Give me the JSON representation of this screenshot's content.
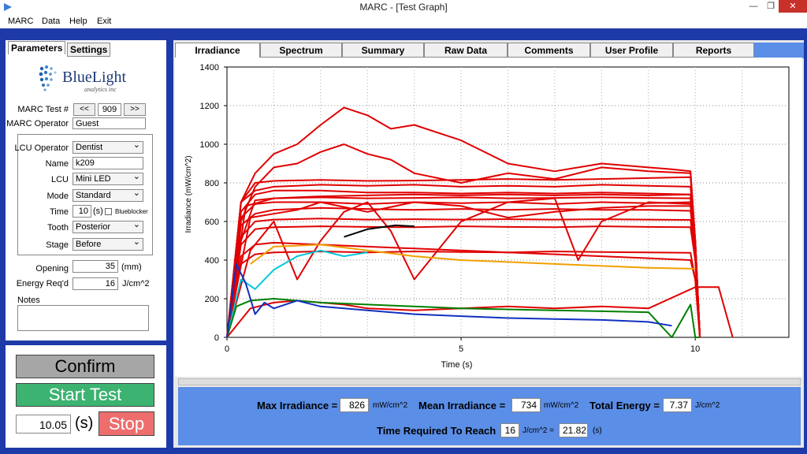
{
  "window": {
    "title": "MARC - [Test Graph]",
    "minimize": "—",
    "restore": "❐",
    "close": "✕"
  },
  "menu": [
    "MARC",
    "Data",
    "Help",
    "Exit"
  ],
  "left_tabs": {
    "parameters": "Parameters",
    "settings": "Settings"
  },
  "logo": {
    "name": "BlueLight",
    "sub": "analytics inc"
  },
  "params": {
    "test_label": "MARC Test #",
    "prev": "<<",
    "test_no": "909",
    "next": ">>",
    "operator_label": "MARC Operator",
    "operator": "Guest",
    "lcu_operator_label": "LCU Operator",
    "lcu_operator": "Dentist",
    "name_label": "Name",
    "name": "k209",
    "lcu_label": "LCU",
    "lcu": "Mini LED",
    "mode_label": "Mode",
    "mode": "Standard",
    "time_label": "Time",
    "time": "10",
    "time_unit": "(s)",
    "blueblocker": "Blueblocker",
    "tooth_label": "Tooth",
    "tooth": "Posterior",
    "stage_label": "Stage",
    "stage": "Before",
    "opening_label": "Opening",
    "opening": "35",
    "opening_unit": "(mm)",
    "energy_label": "Energy Req'd",
    "energy": "16",
    "energy_unit": "J/cm^2",
    "notes_label": "Notes"
  },
  "controls": {
    "confirm": "Confirm",
    "start": "Start Test",
    "elapsed": "10.05",
    "elapsed_unit": "(s)",
    "stop": "Stop"
  },
  "tabs": [
    "Irradiance",
    "Spectrum",
    "Summary",
    "Raw Data",
    "Comments",
    "User Profile",
    "Reports"
  ],
  "stats": {
    "max_label": "Max Irradiance =",
    "max": "826",
    "max_unit": "mW/cm^2",
    "mean_label": "Mean Irradiance =",
    "mean": "734",
    "mean_unit": "mW/cm^2",
    "energy_label": "Total Energy =",
    "energy": "7.37",
    "energy_unit": "J/cm^2",
    "reach_label": "Time Required To Reach",
    "reach_val": "16",
    "reach_unit": "J/cm^2 =",
    "reach_time": "21.82",
    "reach_time_unit": "(s)"
  },
  "colors": {
    "frame": "#1e3aa8",
    "stats_bg": "#5b8ee6",
    "confirm": "#a6a6a6",
    "start": "#3cb371",
    "stop": "#ee6e6e",
    "curve": "#e00000"
  },
  "chart_data": {
    "type": "line",
    "xlabel": "Time (s)",
    "ylabel": "Irradiance (mW/cm^2)",
    "xlim": [
      0,
      12
    ],
    "ylim": [
      0,
      1400
    ],
    "x_ticks": [
      "0",
      "5",
      "10"
    ],
    "y_ticks": [
      "0",
      "200",
      "400",
      "600",
      "800",
      "1000",
      "1200",
      "1400"
    ],
    "grid": true,
    "series": [
      {
        "color": "#e00000",
        "x": [
          0,
          0.3,
          0.6,
          1,
          2,
          3,
          4,
          5,
          6,
          7,
          8,
          9,
          9.9,
          10,
          10.1
        ],
        "y": [
          0,
          620,
          690,
          700,
          700,
          690,
          700,
          695,
          700,
          690,
          700,
          695,
          700,
          500,
          0
        ]
      },
      {
        "color": "#e00000",
        "x": [
          0,
          0.3,
          0.6,
          1,
          2,
          3,
          4,
          5,
          6,
          7,
          8,
          9,
          9.9,
          10,
          10.1
        ],
        "y": [
          0,
          700,
          760,
          780,
          790,
          785,
          790,
          780,
          785,
          780,
          790,
          785,
          780,
          500,
          0
        ]
      },
      {
        "color": "#e00000",
        "x": [
          0,
          0.3,
          0.6,
          1,
          2,
          3,
          4,
          5,
          6,
          7,
          8,
          9,
          9.9,
          10,
          10.1
        ],
        "y": [
          0,
          650,
          740,
          760,
          760,
          750,
          750,
          745,
          750,
          745,
          750,
          745,
          740,
          500,
          0
        ]
      },
      {
        "color": "#e00000",
        "x": [
          0,
          0.3,
          0.6,
          1,
          2,
          3,
          4,
          5,
          6,
          7,
          8,
          9,
          9.9,
          10,
          10.1
        ],
        "y": [
          0,
          580,
          640,
          660,
          670,
          665,
          660,
          665,
          660,
          665,
          660,
          660,
          655,
          450,
          0
        ]
      },
      {
        "color": "#e00000",
        "x": [
          0,
          0.3,
          0.6,
          1,
          2,
          3,
          4,
          5,
          6,
          7,
          8,
          9,
          9.9,
          10,
          10.1
        ],
        "y": [
          0,
          520,
          600,
          610,
          615,
          610,
          612,
          610,
          612,
          610,
          612,
          610,
          608,
          420,
          0
        ]
      },
      {
        "color": "#e00000",
        "x": [
          0,
          0.3,
          0.6,
          1,
          2,
          3,
          4,
          5,
          6,
          7,
          8,
          9,
          9.9,
          10,
          10.1
        ],
        "y": [
          0,
          480,
          560,
          570,
          575,
          572,
          570,
          575,
          572,
          570,
          575,
          572,
          570,
          400,
          0
        ]
      },
      {
        "color": "#e00000",
        "x": [
          0,
          0.3,
          0.6,
          1,
          2,
          3,
          4,
          5,
          6,
          7,
          8,
          9,
          9.9,
          10,
          10.1
        ],
        "y": [
          0,
          700,
          800,
          810,
          815,
          810,
          812,
          815,
          820,
          815,
          820,
          825,
          830,
          500,
          0
        ]
      },
      {
        "color": "#e00000",
        "x": [
          0,
          0.3,
          0.6,
          1,
          2,
          3,
          4,
          5,
          6,
          7,
          8,
          9,
          9.9,
          10,
          10.1
        ],
        "y": [
          0,
          500,
          710,
          720,
          725,
          720,
          722,
          725,
          720,
          722,
          725,
          722,
          720,
          450,
          0
        ]
      },
      {
        "color": "#e00000",
        "x": [
          0,
          0.3,
          0.6,
          1,
          2,
          3,
          4,
          5,
          6,
          7,
          8,
          9,
          9.9,
          10,
          10.1
        ],
        "y": [
          0,
          420,
          480,
          490,
          480,
          470,
          460,
          450,
          440,
          430,
          420,
          410,
          400,
          300,
          0
        ]
      },
      {
        "color": "#e00000",
        "x": [
          0,
          0.3,
          0.6,
          1,
          2,
          3,
          4,
          5,
          6,
          7,
          8,
          9,
          9.9,
          10,
          10.1
        ],
        "y": [
          0,
          380,
          430,
          440,
          445,
          440,
          445,
          442,
          440,
          445,
          442,
          440,
          438,
          300,
          0
        ]
      },
      {
        "color": "#e00000",
        "x": [
          0,
          0.3,
          0.6,
          1,
          1.5,
          2,
          2.5,
          3,
          3.5,
          4,
          5,
          6,
          7,
          8,
          9,
          9.5,
          9.9,
          10,
          10.1
        ],
        "y": [
          0,
          700,
          850,
          950,
          1000,
          1100,
          1190,
          1150,
          1080,
          1100,
          1020,
          900,
          860,
          900,
          880,
          870,
          860,
          500,
          0
        ]
      },
      {
        "color": "#e00000",
        "x": [
          0,
          0.3,
          0.6,
          1,
          1.5,
          2,
          2.5,
          3,
          3.5,
          4,
          5,
          6,
          7,
          8,
          9,
          9.9,
          10,
          10.1
        ],
        "y": [
          0,
          600,
          780,
          880,
          900,
          960,
          1000,
          950,
          920,
          850,
          800,
          850,
          820,
          880,
          860,
          850,
          500,
          0
        ]
      },
      {
        "color": "#e00000",
        "x": [
          0,
          0.5,
          1,
          1.5,
          2,
          2.5,
          3,
          4,
          5,
          6,
          7,
          8,
          9,
          10,
          10.5,
          10.8
        ],
        "y": [
          0,
          150,
          180,
          190,
          180,
          170,
          150,
          140,
          150,
          160,
          150,
          160,
          150,
          260,
          260,
          0
        ]
      },
      {
        "color": "#e00000",
        "x": [
          0,
          0.5,
          1,
          1.5,
          2,
          2.5,
          3,
          3.5,
          4,
          5,
          6,
          7,
          7.5,
          8,
          9,
          9.9,
          10,
          10.1
        ],
        "y": [
          0,
          450,
          600,
          300,
          500,
          650,
          700,
          550,
          300,
          600,
          700,
          720,
          400,
          600,
          700,
          690,
          500,
          0
        ]
      },
      {
        "color": "#e00000",
        "x": [
          0,
          0.5,
          1,
          1.5,
          2,
          3,
          4,
          5,
          6,
          7,
          8,
          9,
          9.9,
          10,
          10.1
        ],
        "y": [
          0,
          620,
          640,
          660,
          700,
          650,
          700,
          680,
          620,
          650,
          670,
          680,
          680,
          450,
          0
        ]
      },
      {
        "color": "#e00000",
        "x": [
          0,
          0.4,
          1,
          2,
          3,
          4,
          5,
          6,
          7,
          8,
          9,
          9.9,
          10,
          10.1
        ],
        "y": [
          0,
          680,
          720,
          730,
          735,
          740,
          735,
          740,
          735,
          740,
          735,
          740,
          480,
          0
        ]
      },
      {
        "color": "#00c8d8",
        "x": [
          0,
          0.3,
          0.6,
          1,
          1.5,
          2,
          2.5,
          3
        ],
        "y": [
          0,
          300,
          250,
          350,
          420,
          450,
          420,
          440
        ]
      },
      {
        "color": "#000000",
        "x": [
          2.5,
          3,
          3.3,
          3.6,
          4
        ],
        "y": [
          520,
          560,
          570,
          580,
          575
        ]
      },
      {
        "color": "#f0a000",
        "x": [
          0.5,
          1,
          2,
          3,
          4,
          5,
          6,
          7,
          8,
          9,
          10
        ],
        "y": [
          380,
          470,
          480,
          450,
          420,
          400,
          390,
          380,
          370,
          360,
          355
        ]
      },
      {
        "color": "#008000",
        "x": [
          0,
          0.2,
          0.5,
          1,
          1.5,
          2,
          3,
          4,
          5,
          6,
          7,
          8,
          9,
          9.5,
          9.9,
          10,
          10.1
        ],
        "y": [
          0,
          160,
          190,
          200,
          190,
          180,
          170,
          160,
          150,
          145,
          140,
          135,
          130,
          0,
          170,
          0,
          0
        ]
      },
      {
        "color": "#1030c0",
        "x": [
          0,
          0.2,
          0.4,
          0.6,
          0.8,
          1,
          1.5,
          2,
          3,
          4,
          5,
          6,
          7,
          8,
          9,
          9.5
        ],
        "y": [
          0,
          380,
          280,
          120,
          180,
          150,
          190,
          160,
          140,
          120,
          110,
          100,
          95,
          90,
          80,
          60
        ]
      }
    ]
  }
}
